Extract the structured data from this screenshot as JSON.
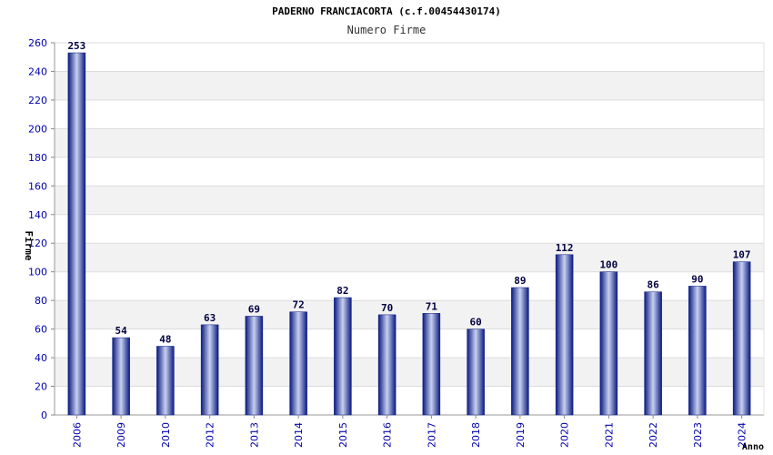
{
  "chart_data": {
    "type": "bar",
    "title": "PADERNO FRANCIACORTA (c.f.00454430174)",
    "subtitle": "Numero Firme",
    "xlabel": "Anno",
    "ylabel": "Firme",
    "categories": [
      "2006",
      "2009",
      "2010",
      "2012",
      "2013",
      "2014",
      "2015",
      "2016",
      "2017",
      "2018",
      "2019",
      "2020",
      "2021",
      "2022",
      "2023",
      "2024"
    ],
    "values": [
      253,
      54,
      48,
      63,
      69,
      72,
      82,
      70,
      71,
      60,
      89,
      112,
      100,
      86,
      90,
      107
    ],
    "ylim": [
      0,
      260
    ],
    "yticks": [
      0,
      20,
      40,
      60,
      80,
      100,
      120,
      140,
      160,
      180,
      200,
      220,
      240,
      260
    ],
    "grid": true,
    "colors": {
      "bar_dark": "#0a1a80",
      "bar_light": "#c8d0f0",
      "band": "#f2f2f2",
      "tick": "#0000aa"
    }
  }
}
